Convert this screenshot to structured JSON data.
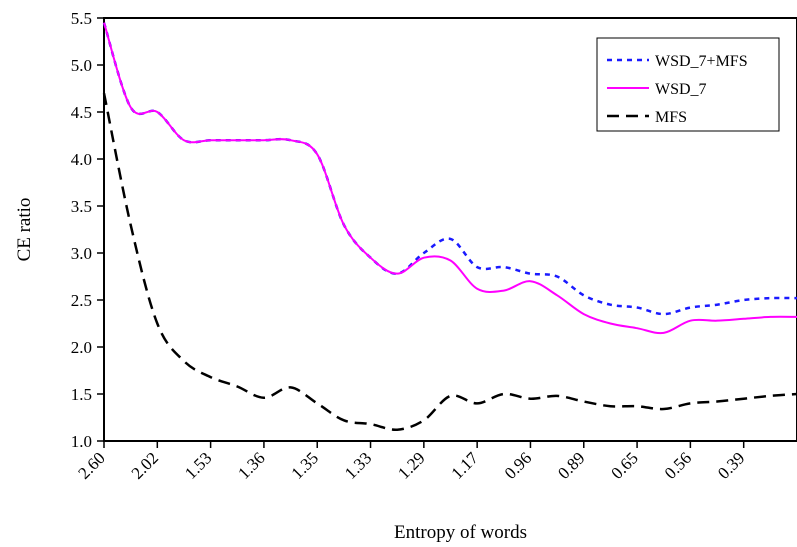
{
  "chart_data": {
    "type": "line",
    "title": "",
    "xlabel": "Entropy of words",
    "ylabel": "CE ratio",
    "ylim": [
      1.0,
      5.5
    ],
    "y_ticks": [
      "1.0",
      "1.5",
      "2.0",
      "2.5",
      "3.0",
      "3.5",
      "4.0",
      "4.5",
      "5.0",
      "5.5"
    ],
    "x_ticks": [
      "2.60",
      "2.02",
      "1.53",
      "1.36",
      "1.35",
      "1.33",
      "1.29",
      "1.17",
      "0.96",
      "0.89",
      "0.65",
      "0.56",
      "0.39"
    ],
    "x_positions": [
      0,
      0.5,
      1,
      1.5,
      2,
      2.5,
      3,
      3.5,
      4,
      4.5,
      5,
      5.5,
      6,
      6.5,
      7,
      7.5,
      8,
      8.5,
      9,
      9.5,
      10,
      10.5,
      11,
      11.5,
      12,
      12.5,
      13
    ],
    "legend_position": "top-right",
    "series": [
      {
        "name": "WSD_7+MFS",
        "style": "dotted",
        "color": "#1a1aff",
        "values": [
          5.45,
          4.55,
          4.5,
          4.2,
          4.2,
          4.2,
          4.2,
          4.2,
          4.05,
          3.3,
          2.95,
          2.78,
          3.0,
          3.15,
          2.85,
          2.85,
          2.78,
          2.75,
          2.55,
          2.45,
          2.42,
          2.35,
          2.42,
          2.45,
          2.5,
          2.52,
          2.52
        ]
      },
      {
        "name": "WSD_7",
        "style": "solid",
        "color": "#ff00ff",
        "values": [
          5.45,
          4.55,
          4.5,
          4.2,
          4.2,
          4.2,
          4.2,
          4.2,
          4.05,
          3.3,
          2.95,
          2.78,
          2.95,
          2.92,
          2.62,
          2.6,
          2.7,
          2.55,
          2.35,
          2.25,
          2.2,
          2.15,
          2.28,
          2.28,
          2.3,
          2.32,
          2.32
        ]
      },
      {
        "name": "MFS",
        "style": "dashed",
        "color": "#000000",
        "values": [
          4.7,
          3.3,
          2.25,
          1.85,
          1.68,
          1.58,
          1.46,
          1.57,
          1.4,
          1.22,
          1.18,
          1.12,
          1.22,
          1.48,
          1.4,
          1.5,
          1.45,
          1.48,
          1.42,
          1.37,
          1.37,
          1.34,
          1.4,
          1.42,
          1.45,
          1.48,
          1.5
        ]
      }
    ]
  }
}
